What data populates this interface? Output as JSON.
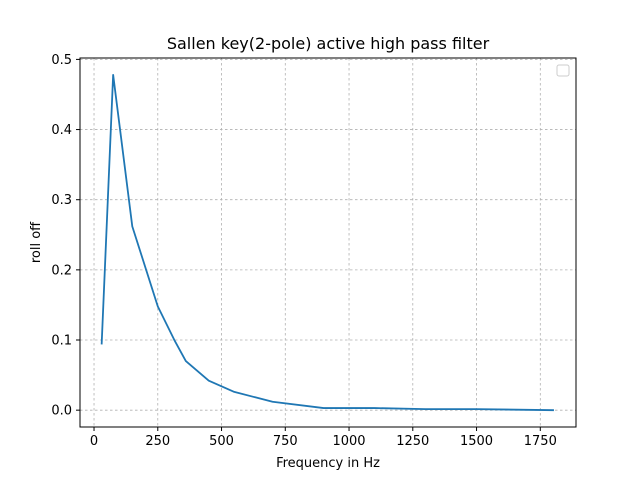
{
  "chart_data": {
    "type": "line",
    "title": "Sallen key(2-pole) active high pass filter",
    "xlabel": "Frequency in Hz",
    "ylabel": "roll off",
    "xlim": [
      -55,
      1890
    ],
    "ylim": [
      -0.024,
      0.502
    ],
    "xticks": [
      0,
      250,
      500,
      750,
      1000,
      1250,
      1500,
      1750
    ],
    "xtick_labels": [
      "0",
      "250",
      "500",
      "750",
      "1000",
      "1250",
      "1500",
      "1750"
    ],
    "yticks": [
      0.0,
      0.1,
      0.2,
      0.3,
      0.4,
      0.5
    ],
    "ytick_labels": [
      "0.0",
      "0.1",
      "0.2",
      "0.3",
      "0.4",
      "0.5"
    ],
    "grid": true,
    "legend": {
      "placement": "upper right",
      "entries": []
    },
    "series": [
      {
        "color": "#1f77b4",
        "x": [
          30,
          75,
          150,
          250,
          315,
          360,
          450,
          550,
          700,
          900,
          1100,
          1300,
          1500,
          1800
        ],
        "y": [
          0.095,
          0.478,
          0.262,
          0.148,
          0.1,
          0.07,
          0.042,
          0.026,
          0.012,
          0.003,
          0.003,
          0.0015,
          0.0015,
          0.0
        ]
      }
    ]
  }
}
